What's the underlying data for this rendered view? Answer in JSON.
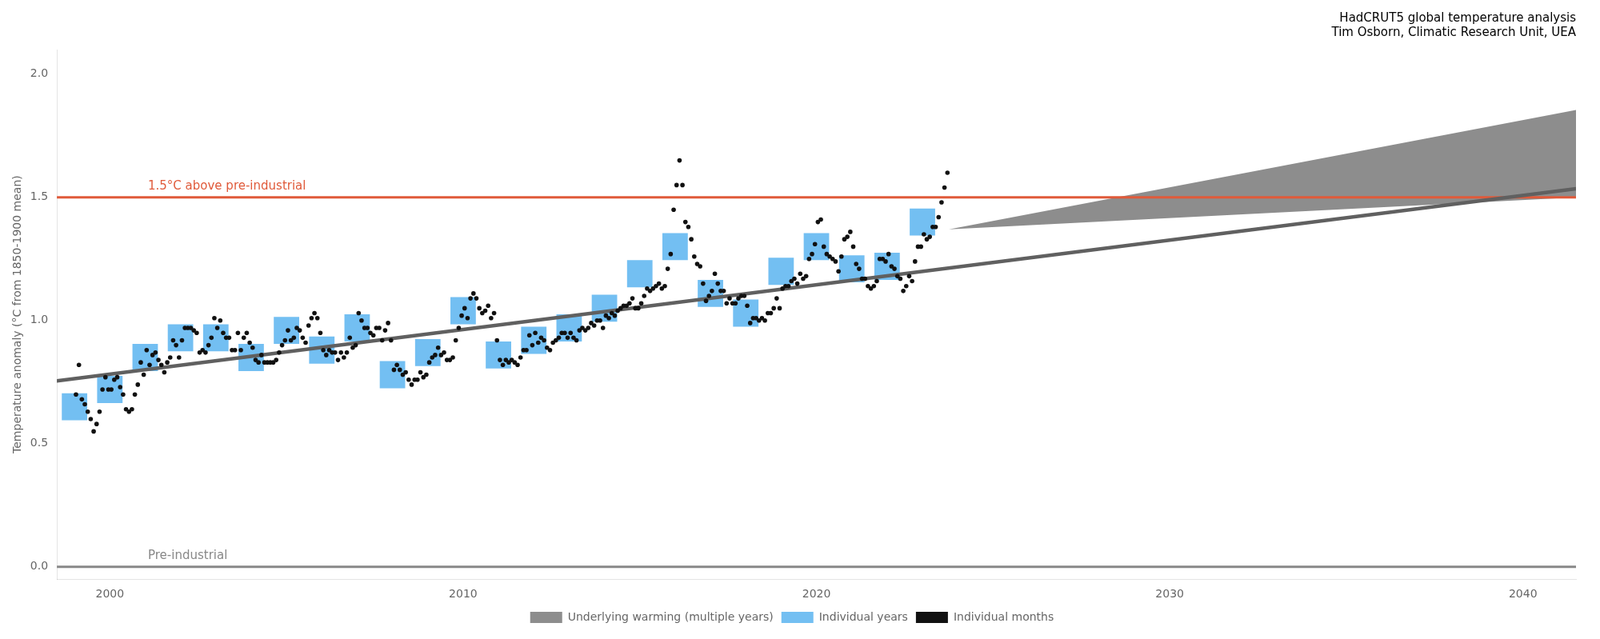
{
  "chart_data": {
    "type": "line",
    "title": "HadCRUT5 global temperature analysis\nTim Osborn, Climatic Research Unit, UEA",
    "y_label": "Temperature anomaly (°C from 1850-1900 mean)",
    "xlim": [
      1998.5,
      2041.5
    ],
    "ylim": [
      -0.05,
      2.1
    ],
    "xticks": [
      2000,
      2010,
      2020,
      2030,
      2040
    ],
    "yticks": [
      {
        "value": 0.0,
        "label": "0.0"
      },
      0.5,
      {
        "value": 1.0,
        "label": "1.0"
      },
      1.5,
      {
        "value": 2.0,
        "label": "2.0"
      }
    ],
    "grid": false,
    "legend": "bottom",
    "reference_lines": [
      {
        "y": 0,
        "label": "Pre-industrial",
        "color": "#888888"
      },
      {
        "y": 1.5,
        "label": "1.5°C above pre-industrial",
        "color": "#e05a3a"
      }
    ],
    "series": [
      {
        "name": "Underlying warming (multiple years)",
        "type": "band",
        "color": "#707070",
        "x": [
          1998.5,
          2023.75,
          2041.5
        ],
        "lower": [
          0.755,
          1.37,
          1.5
        ],
        "upper": [
          0.755,
          1.37,
          1.855
        ]
      },
      {
        "type": "line",
        "color": "#606060",
        "x": [
          1998.5,
          2041.5
        ],
        "values": [
          0.755,
          1.535
        ]
      },
      {
        "name": "Individual years",
        "type": "bar",
        "color": "#44aaee",
        "x": [
          1999,
          2000,
          2001,
          2002,
          2003,
          2004,
          2005,
          2006,
          2007,
          2008,
          2009,
          2010,
          2011,
          2012,
          2013,
          2014,
          2015,
          2016,
          2017,
          2018,
          2019,
          2020,
          2021,
          2022,
          2023
        ],
        "values": [
          0.65,
          0.72,
          0.85,
          0.93,
          0.93,
          0.85,
          0.96,
          0.88,
          0.97,
          0.78,
          0.87,
          1.04,
          0.86,
          0.92,
          0.97,
          1.05,
          1.19,
          1.3,
          1.11,
          1.03,
          1.2,
          1.3,
          1.21,
          1.22,
          1.4
        ],
        "error": [
          0.055,
          0.055,
          0.055,
          0.055,
          0.055,
          0.055,
          0.055,
          0.055,
          0.055,
          0.055,
          0.055,
          0.055,
          0.055,
          0.055,
          0.055,
          0.055,
          0.055,
          0.055,
          0.055,
          0.055,
          0.055,
          0.055,
          0.055,
          0.055,
          0.055
        ]
      },
      {
        "name": "Individual months",
        "type": "scatter",
        "color": "#111111",
        "x": [
          1999.041667,
          1999.125,
          1999.208333,
          1999.291667,
          1999.375,
          1999.458333,
          1999.541667,
          1999.625,
          1999.708333,
          1999.791667,
          1999.875,
          1999.958333,
          2000.041667,
          2000.125,
          2000.208333,
          2000.291667,
          2000.375,
          2000.458333,
          2000.541667,
          2000.625,
          2000.708333,
          2000.791667,
          2000.875,
          2000.958333,
          2001.041667,
          2001.125,
          2001.208333,
          2001.291667,
          2001.375,
          2001.458333,
          2001.541667,
          2001.625,
          2001.708333,
          2001.791667,
          2001.875,
          2001.958333,
          2002.041667,
          2002.125,
          2002.208333,
          2002.291667,
          2002.375,
          2002.458333,
          2002.541667,
          2002.625,
          2002.708333,
          2002.791667,
          2002.875,
          2002.958333,
          2003.041667,
          2003.125,
          2003.208333,
          2003.291667,
          2003.375,
          2003.458333,
          2003.541667,
          2003.625,
          2003.708333,
          2003.791667,
          2003.875,
          2003.958333,
          2004.041667,
          2004.125,
          2004.208333,
          2004.291667,
          2004.375,
          2004.458333,
          2004.541667,
          2004.625,
          2004.708333,
          2004.791667,
          2004.875,
          2004.958333,
          2005.041667,
          2005.125,
          2005.208333,
          2005.291667,
          2005.375,
          2005.458333,
          2005.541667,
          2005.625,
          2005.708333,
          2005.791667,
          2005.875,
          2005.958333,
          2006.041667,
          2006.125,
          2006.208333,
          2006.291667,
          2006.375,
          2006.458333,
          2006.541667,
          2006.625,
          2006.708333,
          2006.791667,
          2006.875,
          2006.958333,
          2007.041667,
          2007.125,
          2007.208333,
          2007.291667,
          2007.375,
          2007.458333,
          2007.541667,
          2007.625,
          2007.708333,
          2007.791667,
          2007.875,
          2007.958333,
          2008.041667,
          2008.125,
          2008.208333,
          2008.291667,
          2008.375,
          2008.458333,
          2008.541667,
          2008.625,
          2008.708333,
          2008.791667,
          2008.875,
          2008.958333,
          2009.041667,
          2009.125,
          2009.208333,
          2009.291667,
          2009.375,
          2009.458333,
          2009.541667,
          2009.625,
          2009.708333,
          2009.791667,
          2009.875,
          2009.958333,
          2010.041667,
          2010.125,
          2010.208333,
          2010.291667,
          2010.375,
          2010.458333,
          2010.541667,
          2010.625,
          2010.708333,
          2010.791667,
          2010.875,
          2010.958333,
          2011.041667,
          2011.125,
          2011.208333,
          2011.291667,
          2011.375,
          2011.458333,
          2011.541667,
          2011.625,
          2011.708333,
          2011.791667,
          2011.875,
          2011.958333,
          2012.041667,
          2012.125,
          2012.208333,
          2012.291667,
          2012.375,
          2012.458333,
          2012.541667,
          2012.625,
          2012.708333,
          2012.791667,
          2012.875,
          2012.958333,
          2013.041667,
          2013.125,
          2013.208333,
          2013.291667,
          2013.375,
          2013.458333,
          2013.541667,
          2013.625,
          2013.708333,
          2013.791667,
          2013.875,
          2013.958333,
          2014.041667,
          2014.125,
          2014.208333,
          2014.291667,
          2014.375,
          2014.458333,
          2014.541667,
          2014.625,
          2014.708333,
          2014.791667,
          2014.875,
          2014.958333,
          2015.041667,
          2015.125,
          2015.208333,
          2015.291667,
          2015.375,
          2015.458333,
          2015.541667,
          2015.625,
          2015.708333,
          2015.791667,
          2015.875,
          2015.958333,
          2016.041667,
          2016.125,
          2016.208333,
          2016.291667,
          2016.375,
          2016.458333,
          2016.541667,
          2016.625,
          2016.708333,
          2016.791667,
          2016.875,
          2016.958333,
          2017.041667,
          2017.125,
          2017.208333,
          2017.291667,
          2017.375,
          2017.458333,
          2017.541667,
          2017.625,
          2017.708333,
          2017.791667,
          2017.875,
          2017.958333,
          2018.041667,
          2018.125,
          2018.208333,
          2018.291667,
          2018.375,
          2018.458333,
          2018.541667,
          2018.625,
          2018.708333,
          2018.791667,
          2018.875,
          2018.958333,
          2019.041667,
          2019.125,
          2019.208333,
          2019.291667,
          2019.375,
          2019.458333,
          2019.541667,
          2019.625,
          2019.708333,
          2019.791667,
          2019.875,
          2019.958333,
          2020.041667,
          2020.125,
          2020.208333,
          2020.291667,
          2020.375,
          2020.458333,
          2020.541667,
          2020.625,
          2020.708333,
          2020.791667,
          2020.875,
          2020.958333,
          2021.041667,
          2021.125,
          2021.208333,
          2021.291667,
          2021.375,
          2021.458333,
          2021.541667,
          2021.625,
          2021.708333,
          2021.791667,
          2021.875,
          2021.958333,
          2022.041667,
          2022.125,
          2022.208333,
          2022.291667,
          2022.375,
          2022.458333,
          2022.541667,
          2022.625,
          2022.708333,
          2022.791667,
          2022.875,
          2022.958333,
          2023.041667,
          2023.125,
          2023.208333,
          2023.291667,
          2023.375,
          2023.458333,
          2023.541667,
          2023.625,
          2023.708333
        ],
        "values": [
          0.7,
          0.82,
          0.68,
          0.66,
          0.63,
          0.6,
          0.55,
          0.58,
          0.63,
          0.72,
          0.77,
          0.72,
          0.72,
          0.76,
          0.77,
          0.73,
          0.7,
          0.64,
          0.63,
          0.64,
          0.7,
          0.74,
          0.83,
          0.78,
          0.88,
          0.82,
          0.86,
          0.87,
          0.84,
          0.82,
          0.79,
          0.83,
          0.85,
          0.92,
          0.9,
          0.85,
          0.92,
          0.97,
          0.97,
          0.97,
          0.96,
          0.95,
          0.87,
          0.88,
          0.87,
          0.9,
          0.93,
          1.01,
          0.97,
          1.0,
          0.95,
          0.93,
          0.93,
          0.88,
          0.88,
          0.95,
          0.88,
          0.93,
          0.95,
          0.91,
          0.89,
          0.84,
          0.83,
          0.86,
          0.83,
          0.83,
          0.83,
          0.83,
          0.84,
          0.87,
          0.9,
          0.92,
          0.96,
          0.92,
          0.93,
          0.97,
          0.96,
          0.93,
          0.91,
          0.98,
          1.01,
          1.03,
          1.01,
          0.95,
          0.88,
          0.86,
          0.88,
          0.87,
          0.87,
          0.84,
          0.87,
          0.85,
          0.87,
          0.93,
          0.89,
          0.9,
          1.03,
          1.0,
          0.97,
          0.97,
          0.95,
          0.94,
          0.97,
          0.97,
          0.92,
          0.96,
          0.99,
          0.92,
          0.8,
          0.82,
          0.8,
          0.78,
          0.79,
          0.76,
          0.74,
          0.76,
          0.76,
          0.79,
          0.77,
          0.78,
          0.83,
          0.85,
          0.86,
          0.89,
          0.86,
          0.87,
          0.84,
          0.84,
          0.85,
          0.92,
          0.97,
          1.02,
          1.05,
          1.01,
          1.09,
          1.11,
          1.09,
          1.05,
          1.03,
          1.04,
          1.06,
          1.01,
          1.03,
          0.92,
          0.84,
          0.82,
          0.84,
          0.83,
          0.84,
          0.83,
          0.82,
          0.85,
          0.88,
          0.88,
          0.94,
          0.9,
          0.95,
          0.91,
          0.93,
          0.92,
          0.89,
          0.88,
          0.91,
          0.92,
          0.93,
          0.95,
          0.95,
          0.93,
          0.95,
          0.93,
          0.92,
          0.96,
          0.97,
          0.96,
          0.97,
          0.99,
          0.98,
          1.0,
          1.0,
          0.97,
          1.02,
          1.01,
          1.03,
          1.02,
          1.04,
          1.05,
          1.06,
          1.06,
          1.07,
          1.09,
          1.05,
          1.05,
          1.07,
          1.1,
          1.13,
          1.12,
          1.13,
          1.14,
          1.15,
          1.13,
          1.14,
          1.21,
          1.27,
          1.45,
          1.55,
          1.65,
          1.55,
          1.4,
          1.38,
          1.33,
          1.26,
          1.23,
          1.22,
          1.15,
          1.08,
          1.1,
          1.12,
          1.19,
          1.15,
          1.12,
          1.12,
          1.07,
          1.09,
          1.07,
          1.07,
          1.09,
          1.1,
          1.1,
          1.06,
          0.99,
          1.01,
          1.01,
          1.0,
          1.01,
          1.0,
          1.03,
          1.03,
          1.05,
          1.09,
          1.05,
          1.13,
          1.14,
          1.14,
          1.16,
          1.17,
          1.15,
          1.19,
          1.17,
          1.18,
          1.25,
          1.27,
          1.31,
          1.4,
          1.41,
          1.3,
          1.27,
          1.26,
          1.25,
          1.24,
          1.2,
          1.26,
          1.33,
          1.34,
          1.36,
          1.3,
          1.23,
          1.21,
          1.17,
          1.17,
          1.14,
          1.13,
          1.14,
          1.16,
          1.25,
          1.25,
          1.24,
          1.27,
          1.22,
          1.21,
          1.18,
          1.17,
          1.12,
          1.14,
          1.18,
          1.16,
          1.24,
          1.3,
          1.3,
          1.35,
          1.33,
          1.34,
          1.38,
          1.38,
          1.42,
          1.48,
          1.54,
          1.6
        ]
      }
    ]
  }
}
